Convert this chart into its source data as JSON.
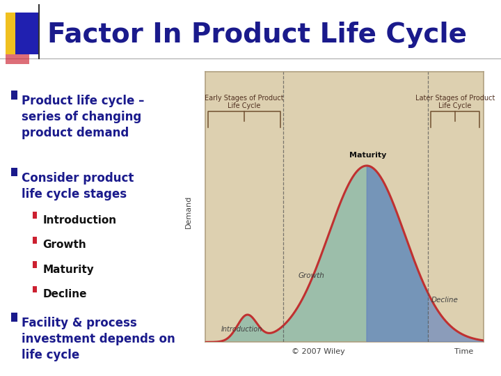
{
  "title": "Factor In Product Life Cycle",
  "title_color": "#1a1a8c",
  "title_fontsize": 28,
  "bg_color": "#ffffff",
  "slide_accent_yellow": "#f0c020",
  "slide_accent_blue": "#2020b0",
  "slide_accent_red": "#cc2030",
  "bullet_color": "#1a1a8c",
  "bullet_fontsize": 12,
  "sub_bullet_color": "#111111",
  "sub_bullet_fontsize": 11,
  "bullets": [
    "Product life cycle –\nseries of changing\nproduct demand",
    "Consider product\nlife cycle stages"
  ],
  "sub_bullets": [
    "Introduction",
    "Growth",
    "Maturity",
    "Decline"
  ],
  "last_bullet": "Facility & process\ninvestment depends on\nlife cycle",
  "chart_bg": "#ddd0b0",
  "chart_border": "#b0a080",
  "curve_color": "#c03030",
  "fill_early_color": "#7ab5a8",
  "fill_late_color": "#6080c0",
  "dashed_line_color": "#555555",
  "axis_label_color": "#404040",
  "stage_labels": [
    "Introduction",
    "Growth",
    "Maturity",
    "Decline"
  ],
  "stage_label_color": "#404040",
  "early_label": "Early Stages of Product\nLife Cycle",
  "late_label": "Later Stages of Product\nLife Cycle",
  "demand_label": "Demand",
  "time_label": "Time",
  "copyright_text": "© 2007 Wiley",
  "brace_color": "#705030",
  "brace_label_color": "#503020"
}
